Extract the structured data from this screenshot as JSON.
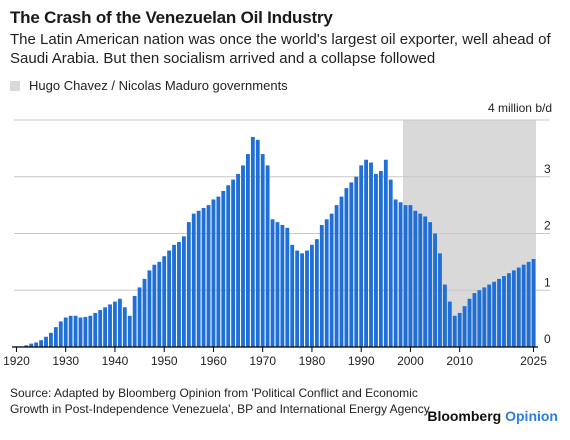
{
  "title": "The Crash of the Venezuelan Oil Industry",
  "subtitle": "The Latin American nation was once the world's largest oil exporter, well ahead of Saudi Arabia. But then socialism arrived and a collapse followed",
  "legend": {
    "label": "Hugo Chavez / Nicolas Maduro governments"
  },
  "source": "Source: Adapted by Bloomberg Opinion from 'Political Conflict and Economic Growth in Post-Independence Venezuela', BP and International Energy Agency",
  "brand": {
    "name": "Bloomberg",
    "accent": "Opinion"
  },
  "colors": {
    "bar": "#1f6fd6",
    "shade": "#d9d9d9",
    "grid": "#c8c8c8",
    "axis": "#000000",
    "brand_accent": "#2a7de1"
  },
  "chart_data": {
    "type": "bar",
    "unit_label": "4 million b/d",
    "ylim": [
      0,
      4
    ],
    "y_ticks": [
      0,
      1,
      2,
      3
    ],
    "x_ticks": [
      1920,
      1930,
      1940,
      1950,
      1960,
      1970,
      1980,
      1990,
      2000,
      2010,
      2025
    ],
    "shaded_period": {
      "start": 1999,
      "end": 2025
    },
    "grid": true,
    "x": [
      1920,
      1921,
      1922,
      1923,
      1924,
      1925,
      1926,
      1927,
      1928,
      1929,
      1930,
      1931,
      1932,
      1933,
      1934,
      1935,
      1936,
      1937,
      1938,
      1939,
      1940,
      1941,
      1942,
      1943,
      1944,
      1945,
      1946,
      1947,
      1948,
      1949,
      1950,
      1951,
      1952,
      1953,
      1954,
      1955,
      1956,
      1957,
      1958,
      1959,
      1960,
      1961,
      1962,
      1963,
      1964,
      1965,
      1966,
      1967,
      1968,
      1969,
      1970,
      1971,
      1972,
      1973,
      1974,
      1975,
      1976,
      1977,
      1978,
      1979,
      1980,
      1981,
      1982,
      1983,
      1984,
      1985,
      1986,
      1987,
      1988,
      1989,
      1990,
      1991,
      1992,
      1993,
      1994,
      1995,
      1996,
      1997,
      1998,
      1999,
      2000,
      2001,
      2002,
      2003,
      2004,
      2005,
      2006,
      2007,
      2008,
      2009,
      2010,
      2011,
      2012,
      2013,
      2014,
      2015,
      2016,
      2017,
      2018,
      2019,
      2020,
      2021,
      2022,
      2023,
      2024,
      2025
    ],
    "values": [
      0.01,
      0.01,
      0.03,
      0.06,
      0.08,
      0.12,
      0.18,
      0.25,
      0.35,
      0.45,
      0.52,
      0.55,
      0.55,
      0.52,
      0.53,
      0.55,
      0.6,
      0.65,
      0.7,
      0.75,
      0.8,
      0.85,
      0.7,
      0.55,
      0.9,
      1.05,
      1.2,
      1.35,
      1.45,
      1.5,
      1.6,
      1.7,
      1.8,
      1.85,
      1.95,
      2.2,
      2.35,
      2.4,
      2.45,
      2.5,
      2.6,
      2.65,
      2.75,
      2.85,
      2.95,
      3.05,
      3.2,
      3.4,
      3.7,
      3.65,
      3.4,
      3.2,
      2.25,
      2.2,
      2.15,
      2.1,
      1.8,
      1.7,
      1.65,
      1.7,
      1.8,
      1.9,
      2.15,
      2.25,
      2.35,
      2.5,
      2.65,
      2.8,
      2.9,
      3.0,
      3.2,
      3.3,
      3.25,
      3.05,
      3.1,
      3.3,
      2.95,
      2.6,
      2.55,
      2.5,
      2.5,
      2.4,
      2.35,
      2.3,
      2.2,
      2.0,
      1.65,
      1.1,
      0.8,
      0.55,
      0.6,
      0.72,
      0.85,
      0.95,
      1.0,
      1.05,
      1.1,
      1.15,
      1.2,
      1.25,
      1.3,
      1.35,
      1.4,
      1.45,
      1.5,
      1.55
    ]
  }
}
